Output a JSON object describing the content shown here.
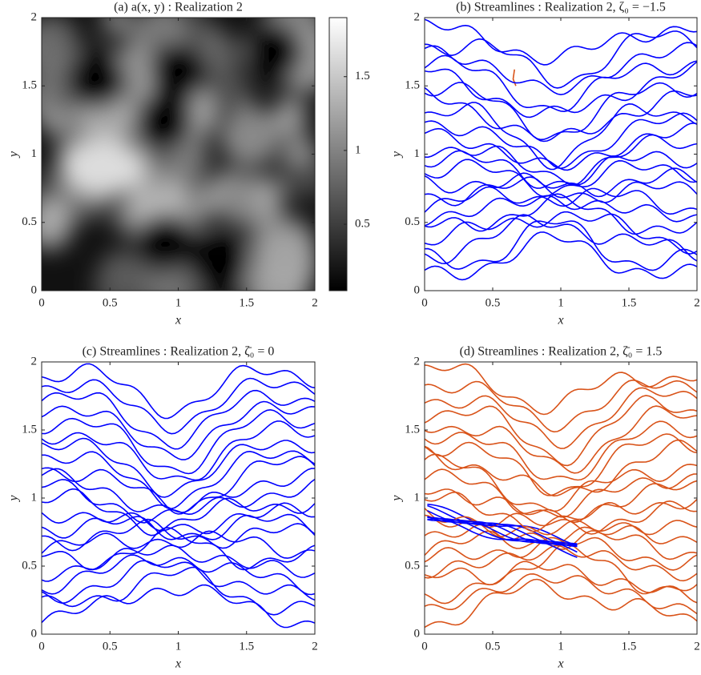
{
  "chart_data": [
    {
      "type": "heatmap",
      "title": "(a) a(x, y) :  Realization 2",
      "xlabel": "x",
      "ylabel": "y",
      "xlim": [
        0,
        2
      ],
      "ylim": [
        0,
        2
      ],
      "xticks": [
        0,
        0.5,
        1,
        1.5,
        2
      ],
      "yticks": [
        0,
        0.5,
        1,
        1.5,
        2
      ],
      "clim": [
        0.05,
        1.9
      ],
      "cticks": [
        0.5,
        1,
        1.5
      ]
    },
    {
      "type": "streamlines",
      "title": "(b) Streamlines :  Realization 2, ζ₀ = −1.5",
      "xlabel": "x",
      "ylabel": "y",
      "xlim": [
        0,
        2
      ],
      "ylim": [
        0,
        2
      ],
      "xticks": [
        0,
        0.5,
        1,
        1.5,
        2
      ],
      "yticks": [
        0,
        0.5,
        1,
        1.5,
        2
      ],
      "colors": [
        "#0000ff",
        "#d95319"
      ]
    },
    {
      "type": "streamlines",
      "title": "(c) Streamlines :  Realization 2, ζ̄₀ = 0",
      "xlabel": "x",
      "ylabel": "y",
      "xlim": [
        0,
        2
      ],
      "ylim": [
        0,
        2
      ],
      "xticks": [
        0,
        0.5,
        1,
        1.5,
        2
      ],
      "yticks": [
        0,
        0.5,
        1,
        1.5,
        2
      ],
      "colors": [
        "#0000ff"
      ]
    },
    {
      "type": "streamlines",
      "title": "(d) Streamlines :  Realization 2, ζ̄₀ = 1.5",
      "xlabel": "x",
      "ylabel": "y",
      "xlim": [
        0,
        2
      ],
      "ylim": [
        0,
        2
      ],
      "xticks": [
        0,
        0.5,
        1,
        1.5,
        2
      ],
      "yticks": [
        0,
        0.5,
        1,
        1.5,
        2
      ],
      "colors": [
        "#d95319",
        "#0000ff"
      ]
    }
  ]
}
